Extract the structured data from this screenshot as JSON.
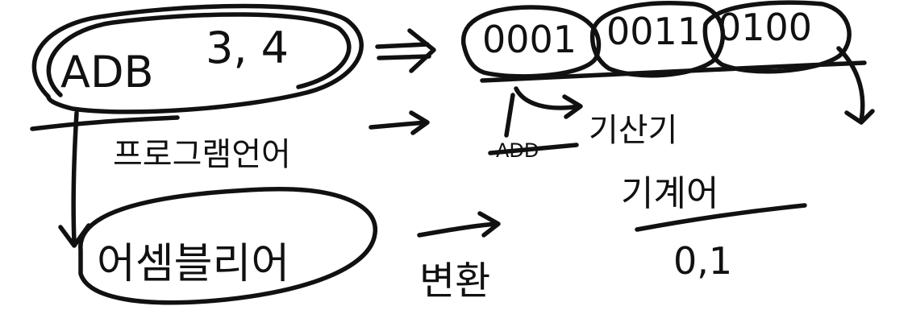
{
  "canvas": {
    "background": "#ffffff",
    "ink_color": "#111111"
  },
  "notes": {
    "adb": "ADB",
    "operands": "3, 4",
    "binary_1": "0001",
    "binary_2": "0011",
    "binary_3": "0100",
    "korean_program": "프로그램언어",
    "korean_assembly": "어셈블리어",
    "korean_convert": "변환",
    "korean_assembler": "기산기",
    "korean_machine_lang": "기계어",
    "machine_code": "0,1"
  }
}
